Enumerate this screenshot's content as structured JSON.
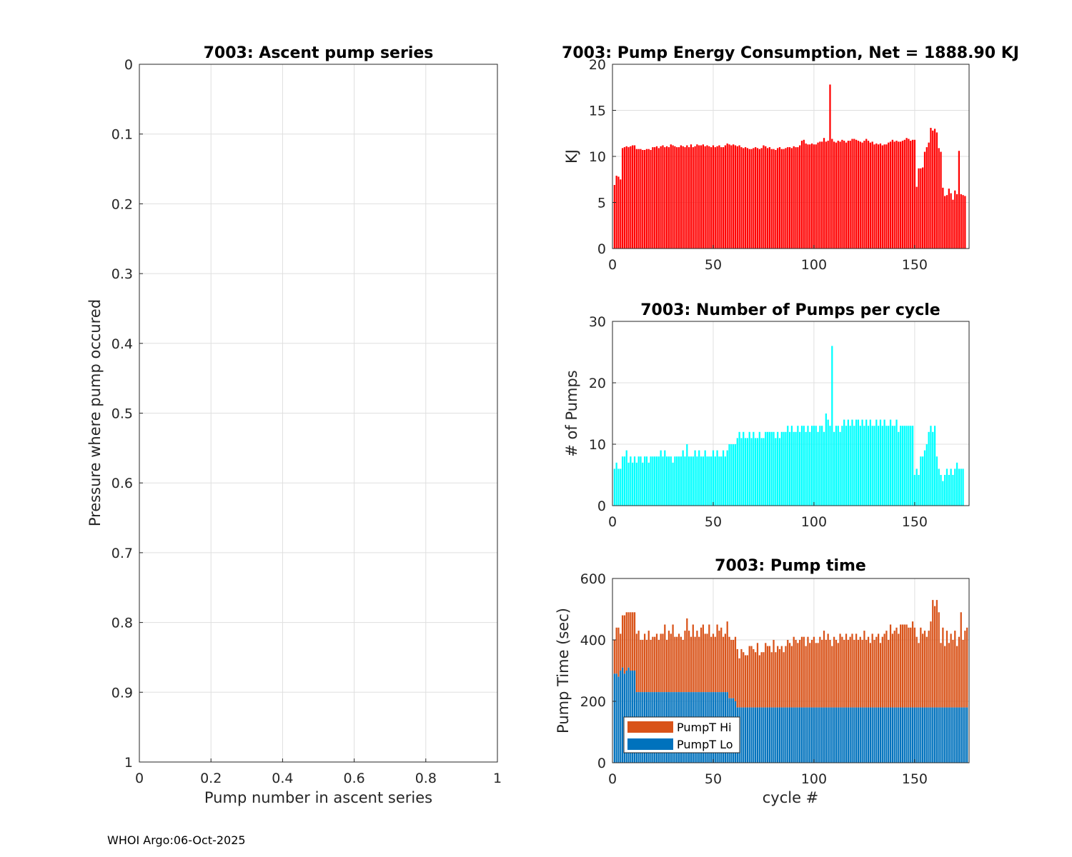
{
  "footer": "WHOI Argo:06-Oct-2025",
  "colors": {
    "energy": "#ff0000",
    "pumps": "#00ffff",
    "hi": "#d95319",
    "lo": "#0072bd"
  },
  "chart_data": [
    {
      "id": "ascent",
      "type": "scatter",
      "title": "7003: Ascent pump series",
      "xlabel": "Pump number in ascent series",
      "ylabel": "Pressure where pump occured",
      "xlim": [
        0,
        1
      ],
      "ylim": [
        0,
        1
      ],
      "yreversed": true,
      "xticks": [
        0,
        0.2,
        0.4,
        0.6,
        0.8,
        1
      ],
      "xticklabels": [
        "0",
        "0.2",
        "0.4",
        "0.6",
        "0.8",
        "1"
      ],
      "yticks": [
        0,
        0.1,
        0.2,
        0.3,
        0.4,
        0.5,
        0.6,
        0.7,
        0.8,
        0.9,
        1
      ],
      "yticklabels": [
        "0",
        "0.1",
        "0.2",
        "0.3",
        "0.4",
        "0.5",
        "0.6",
        "0.7",
        "0.8",
        "0.9",
        "1"
      ],
      "grid": true,
      "points": []
    },
    {
      "id": "energy",
      "type": "bar",
      "title": "7003: Pump Energy Consumption,  Net = 1888.90 KJ",
      "xlabel": "",
      "ylabel": "KJ",
      "xlim": [
        0,
        177
      ],
      "ylim": [
        0,
        20
      ],
      "xticks": [
        0,
        50,
        100,
        150
      ],
      "xticklabels": [
        "0",
        "50",
        "100",
        "150"
      ],
      "yticks": [
        0,
        5,
        10,
        15,
        20
      ],
      "yticklabels": [
        "0",
        "5",
        "10",
        "15",
        "20"
      ],
      "grid": true,
      "x_start": 1,
      "values": [
        6.9,
        7.9,
        7.8,
        7.5,
        10.9,
        11.0,
        11.1,
        11.0,
        11.1,
        11.2,
        11.2,
        10.8,
        10.8,
        10.8,
        10.7,
        10.7,
        10.8,
        10.8,
        10.7,
        11.0,
        11.0,
        11.1,
        10.9,
        11.1,
        11.2,
        11.0,
        11.1,
        11.0,
        11.3,
        11.2,
        11.1,
        11.0,
        11.0,
        11.2,
        11.1,
        11.0,
        11.2,
        11.0,
        11.3,
        11.0,
        11.1,
        11.3,
        11.2,
        11.2,
        11.3,
        11.1,
        11.2,
        11.1,
        11.0,
        11.2,
        11.0,
        11.1,
        11.2,
        11.0,
        11.0,
        11.2,
        11.4,
        11.3,
        11.2,
        11.3,
        11.2,
        11.1,
        11.2,
        11.0,
        10.9,
        11.0,
        10.9,
        10.8,
        10.8,
        10.9,
        11.0,
        10.9,
        10.8,
        10.9,
        11.2,
        11.1,
        10.9,
        11.0,
        10.8,
        10.8,
        10.7,
        10.9,
        11.0,
        10.8,
        10.8,
        10.9,
        11.0,
        11.0,
        10.9,
        11.1,
        11.0,
        11.0,
        11.2,
        11.7,
        11.8,
        11.4,
        11.3,
        11.3,
        11.4,
        11.3,
        11.3,
        11.5,
        11.6,
        11.6,
        12.0,
        11.6,
        11.7,
        17.8,
        11.9,
        11.6,
        11.5,
        11.7,
        11.6,
        11.8,
        11.7,
        11.5,
        11.7,
        11.7,
        11.9,
        11.9,
        11.8,
        11.7,
        11.6,
        11.5,
        11.7,
        11.9,
        11.7,
        11.5,
        11.6,
        11.3,
        11.4,
        11.3,
        11.4,
        11.2,
        11.3,
        11.3,
        11.5,
        11.6,
        11.8,
        11.6,
        11.7,
        11.6,
        11.6,
        11.7,
        11.8,
        12.0,
        11.9,
        11.7,
        11.8,
        11.8,
        6.7,
        8.7,
        8.7,
        8.8,
        10.5,
        11.0,
        11.5,
        13.1,
        12.8,
        13.0,
        12.6,
        10.9,
        10.5,
        6.6,
        5.7,
        5.8,
        6.5,
        6.0,
        5.3,
        6.3,
        5.9,
        10.6,
        5.9,
        5.8,
        5.7
      ]
    },
    {
      "id": "pumps",
      "type": "bar",
      "title": "7003: Number of Pumps per cycle",
      "xlabel": "",
      "ylabel": "# of Pumps",
      "xlim": [
        0,
        177
      ],
      "ylim": [
        0,
        30
      ],
      "xticks": [
        0,
        50,
        100,
        150
      ],
      "xticklabels": [
        "0",
        "50",
        "100",
        "150"
      ],
      "yticks": [
        0,
        10,
        20,
        30
      ],
      "yticklabels": [
        "0",
        "10",
        "20",
        "30"
      ],
      "grid": true,
      "x_start": 1,
      "values": [
        6,
        7,
        6,
        6,
        8,
        8,
        9,
        7,
        8,
        7,
        8,
        7,
        8,
        8,
        7,
        8,
        8,
        7,
        8,
        8,
        8,
        8,
        8,
        9,
        8,
        9,
        8,
        8,
        8,
        7,
        8,
        8,
        8,
        8,
        9,
        8,
        10,
        8,
        8,
        8,
        9,
        8,
        9,
        8,
        8,
        9,
        8,
        8,
        8,
        9,
        8,
        9,
        8,
        8,
        9,
        8,
        9,
        10,
        10,
        10,
        10,
        11,
        12,
        11,
        12,
        11,
        11,
        12,
        11,
        12,
        11,
        11,
        12,
        11,
        11,
        12,
        12,
        12,
        12,
        12,
        11,
        12,
        11,
        12,
        12,
        12,
        13,
        12,
        13,
        12,
        12,
        13,
        12,
        13,
        13,
        12,
        13,
        12,
        13,
        13,
        13,
        12,
        13,
        13,
        12,
        15,
        14,
        13,
        26,
        12,
        13,
        13,
        12,
        13,
        14,
        13,
        14,
        13,
        14,
        13,
        14,
        14,
        13,
        14,
        13,
        14,
        13,
        14,
        13,
        13,
        14,
        13,
        14,
        13,
        14,
        13,
        13,
        14,
        13,
        13,
        14,
        12,
        13,
        13,
        13,
        13,
        13,
        13,
        13,
        5,
        6,
        5,
        8,
        8,
        9,
        10,
        12,
        13,
        12,
        13,
        8,
        6,
        5,
        4,
        5,
        6,
        5,
        6,
        5,
        6,
        7,
        6,
        6,
        6
      ]
    },
    {
      "id": "pumptime",
      "type": "bar",
      "stacked": true,
      "title": "7003: Pump time",
      "xlabel": "cycle #",
      "ylabel": "Pump Time (sec)",
      "xlim": [
        0,
        177
      ],
      "ylim": [
        0,
        600
      ],
      "xticks": [
        0,
        50,
        100,
        150
      ],
      "xticklabels": [
        "0",
        "50",
        "100",
        "150"
      ],
      "yticks": [
        0,
        200,
        400,
        600
      ],
      "yticklabels": [
        "0",
        "200",
        "400",
        "600"
      ],
      "grid": true,
      "legend": "bottom-left",
      "x_start": 1,
      "series": [
        {
          "name": "PumpT Lo",
          "color": "#0072bd",
          "values": [
            290,
            290,
            280,
            300,
            310,
            290,
            300,
            310,
            300,
            300,
            300,
            230,
            230,
            230,
            230,
            230,
            230,
            230,
            230,
            230,
            230,
            230,
            230,
            230,
            230,
            230,
            230,
            230,
            230,
            230,
            230,
            230,
            230,
            230,
            230,
            230,
            230,
            230,
            230,
            230,
            230,
            230,
            230,
            230,
            230,
            230,
            230,
            230,
            230,
            230,
            230,
            230,
            230,
            230,
            230,
            230,
            230,
            210,
            210,
            210,
            200,
            180,
            180,
            180,
            180,
            180,
            180,
            180,
            180,
            180,
            180,
            180,
            180,
            180,
            180,
            180,
            180,
            180,
            180,
            180,
            180,
            180,
            180,
            180,
            180,
            180,
            180,
            180,
            180,
            180,
            180,
            180,
            180,
            180,
            180,
            180,
            180,
            180,
            180,
            180,
            180,
            180,
            180,
            180,
            180,
            180,
            180,
            180,
            180,
            180,
            180,
            180,
            180,
            180,
            180,
            180,
            180,
            180,
            180,
            180,
            180,
            180,
            180,
            180,
            180,
            180,
            180,
            180,
            180,
            180,
            180,
            180,
            180,
            180,
            180,
            180,
            180,
            180,
            180,
            180,
            180,
            180,
            180,
            180,
            180,
            180,
            180,
            180,
            180,
            180,
            180,
            180,
            180,
            180,
            180,
            180,
            180,
            180,
            180,
            180,
            180,
            180,
            180,
            180,
            180,
            180,
            180,
            180,
            180,
            180,
            180,
            180,
            180,
            180,
            180,
            180
          ]
        },
        {
          "name": "PumpT Hi",
          "color": "#d95319",
          "values": [
            110,
            150,
            160,
            120,
            170,
            190,
            190,
            180,
            190,
            190,
            190,
            190,
            200,
            170,
            170,
            190,
            170,
            200,
            170,
            180,
            180,
            190,
            170,
            190,
            190,
            220,
            170,
            200,
            190,
            220,
            180,
            180,
            190,
            180,
            170,
            200,
            240,
            200,
            180,
            220,
            180,
            200,
            180,
            210,
            220,
            190,
            190,
            220,
            180,
            190,
            180,
            220,
            200,
            210,
            180,
            190,
            230,
            200,
            190,
            190,
            210,
            190,
            160,
            190,
            180,
            170,
            170,
            200,
            200,
            190,
            180,
            210,
            170,
            180,
            180,
            210,
            200,
            200,
            180,
            220,
            180,
            200,
            190,
            200,
            180,
            200,
            220,
            210,
            200,
            230,
            220,
            210,
            220,
            230,
            230,
            200,
            230,
            210,
            220,
            230,
            210,
            210,
            230,
            220,
            250,
            220,
            240,
            220,
            200,
            230,
            220,
            210,
            240,
            230,
            220,
            240,
            220,
            230,
            240,
            220,
            240,
            220,
            230,
            220,
            250,
            220,
            230,
            210,
            240,
            220,
            230,
            240,
            210,
            230,
            240,
            250,
            220,
            270,
            240,
            250,
            260,
            240,
            270,
            270,
            270,
            270,
            260,
            260,
            280,
            260,
            230,
            210,
            260,
            240,
            250,
            230,
            250,
            280,
            350,
            330,
            350,
            310,
            210,
            260,
            200,
            250,
            210,
            240,
            220,
            250,
            200,
            230,
            310,
            220,
            250,
            260
          ]
        }
      ]
    }
  ]
}
